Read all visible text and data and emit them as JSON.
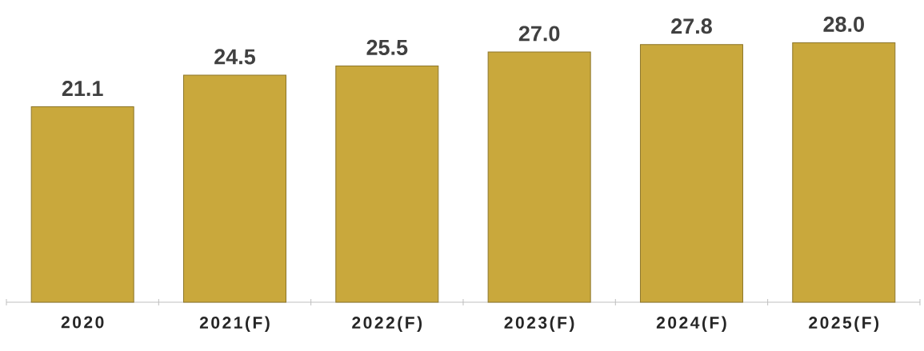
{
  "chart_data": {
    "type": "bar",
    "categories": [
      "2020",
      "2021(F)",
      "2022(F)",
      "2023(F)",
      "2024(F)",
      "2025(F)"
    ],
    "values": [
      21.1,
      24.5,
      25.5,
      27.0,
      27.8,
      28.0
    ],
    "value_labels": [
      "21.1",
      "24.5",
      "25.5",
      "27.0",
      "27.8",
      "28.0"
    ],
    "color": "#c9a83c",
    "tick_labels": "x"
  }
}
